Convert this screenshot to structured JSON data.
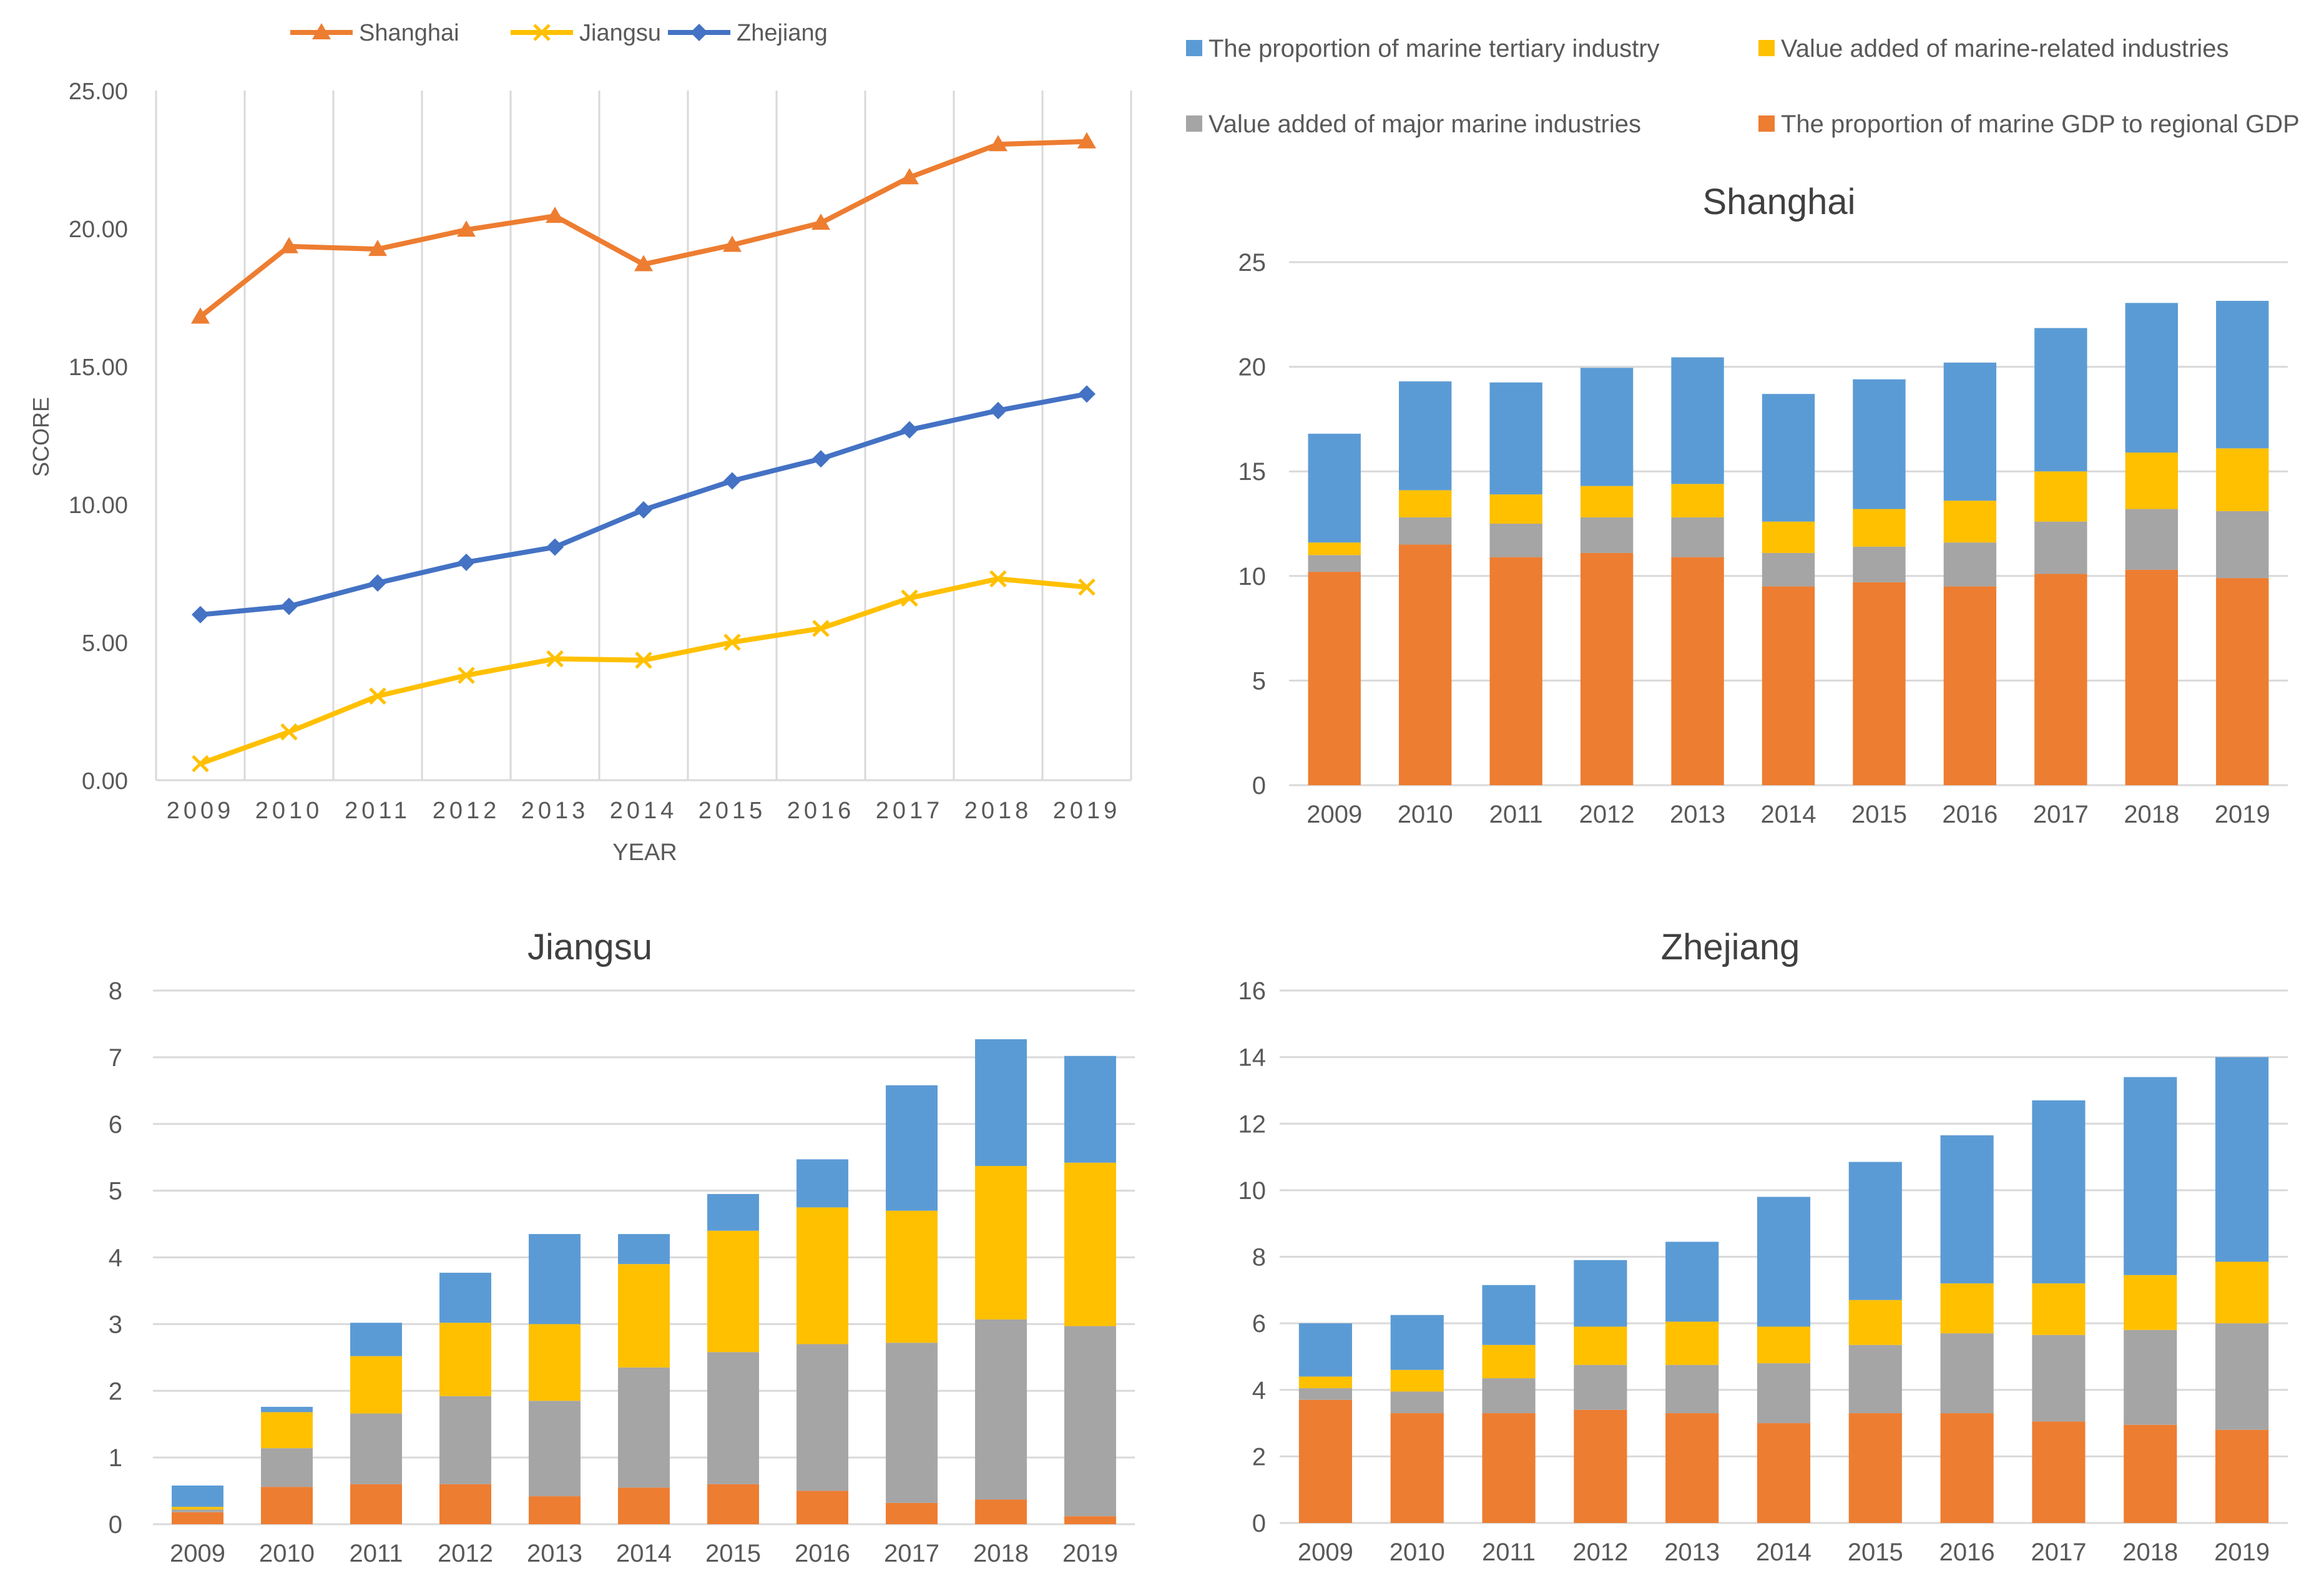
{
  "colors": {
    "shanghai_line": "#ED7D31",
    "jiangsu_line": "#FFC000",
    "zhejiang_line": "#4472C4",
    "gdp_proportion": "#ED7D31",
    "major_industries": "#A5A5A5",
    "related_industries": "#FFC000",
    "tertiary_industry": "#5B9BD5",
    "grid": "#D9D9D9",
    "axis_text": "#595959",
    "title_text": "#404040"
  },
  "chart_data": [
    {
      "type": "line",
      "title": "",
      "xlabel": "YEAR",
      "ylabel": "SCORE",
      "ylim": [
        0,
        25
      ],
      "yticks": [
        "0.00",
        "5.00",
        "10.00",
        "15.00",
        "20.00",
        "25.00"
      ],
      "categories": [
        "2009",
        "2010",
        "2011",
        "2012",
        "2013",
        "2014",
        "2015",
        "2016",
        "2017",
        "2018",
        "2019"
      ],
      "legend": [
        "Shanghai",
        "Jiangsu",
        "Zhejiang"
      ],
      "series": [
        {
          "name": "Shanghai",
          "marker": "triangle",
          "values": [
            16.8,
            19.35,
            19.25,
            19.95,
            20.45,
            18.7,
            19.4,
            20.2,
            21.85,
            23.05,
            23.15
          ]
        },
        {
          "name": "Jiangsu",
          "marker": "x",
          "values": [
            0.6,
            1.75,
            3.05,
            3.8,
            4.4,
            4.35,
            5.0,
            5.5,
            6.6,
            7.3,
            7.0
          ]
        },
        {
          "name": "Zhejiang",
          "marker": "diamond",
          "values": [
            6.0,
            6.3,
            7.15,
            7.9,
            8.45,
            9.8,
            10.85,
            11.65,
            12.7,
            13.4,
            14.0
          ]
        }
      ]
    },
    {
      "type": "bar",
      "stacked": true,
      "title": "Shanghai",
      "ylim": [
        0,
        25
      ],
      "yticks": [
        "0",
        "5",
        "10",
        "15",
        "20",
        "25"
      ],
      "categories": [
        "2009",
        "2010",
        "2011",
        "2012",
        "2013",
        "2014",
        "2015",
        "2016",
        "2017",
        "2018",
        "2019"
      ],
      "legend": [
        "The proportion of marine tertiary industry",
        "Value added of marine-related industries",
        "Value added of major marine industries",
        "The proportion of marine GDP to regional GDP"
      ],
      "series": [
        {
          "name": "The proportion of marine GDP to regional GDP",
          "values": [
            10.2,
            11.5,
            10.9,
            11.1,
            10.9,
            9.5,
            9.7,
            9.5,
            10.1,
            10.3,
            9.9
          ]
        },
        {
          "name": "Value added of major marine industries",
          "values": [
            0.8,
            1.3,
            1.6,
            1.7,
            1.9,
            1.6,
            1.7,
            2.1,
            2.5,
            2.9,
            3.2
          ]
        },
        {
          "name": "Value added of marine-related industries",
          "values": [
            0.6,
            1.3,
            1.4,
            1.5,
            1.6,
            1.5,
            1.8,
            2.0,
            2.4,
            2.7,
            3.0
          ]
        },
        {
          "name": "The proportion of marine tertiary industry",
          "values": [
            5.2,
            5.2,
            5.35,
            5.65,
            6.05,
            6.1,
            6.2,
            6.6,
            6.85,
            7.15,
            7.05
          ]
        }
      ]
    },
    {
      "type": "bar",
      "stacked": true,
      "title": "Jiangsu",
      "ylim": [
        0,
        8
      ],
      "yticks": [
        "0",
        "1",
        "2",
        "3",
        "4",
        "5",
        "6",
        "7",
        "8"
      ],
      "categories": [
        "2009",
        "2010",
        "2011",
        "2012",
        "2013",
        "2014",
        "2015",
        "2016",
        "2017",
        "2018",
        "2019"
      ],
      "series": [
        {
          "name": "The proportion of marine GDP to regional GDP",
          "values": [
            0.18,
            0.56,
            0.6,
            0.6,
            0.42,
            0.55,
            0.6,
            0.5,
            0.32,
            0.37,
            0.12
          ]
        },
        {
          "name": "Value added of major marine industries",
          "values": [
            0.04,
            0.58,
            1.06,
            1.32,
            1.43,
            1.8,
            1.98,
            2.2,
            2.4,
            2.7,
            2.85
          ]
        },
        {
          "name": "Value added of marine-related industries",
          "values": [
            0.04,
            0.54,
            0.86,
            1.1,
            1.15,
            1.55,
            1.82,
            2.05,
            1.98,
            2.3,
            2.45
          ]
        },
        {
          "name": "The proportion of marine tertiary industry",
          "values": [
            0.32,
            0.08,
            0.5,
            0.75,
            1.35,
            0.45,
            0.55,
            0.72,
            1.88,
            1.9,
            1.6
          ]
        }
      ]
    },
    {
      "type": "bar",
      "stacked": true,
      "title": "Zhejiang",
      "ylim": [
        0,
        16
      ],
      "yticks": [
        "0",
        "2",
        "4",
        "6",
        "8",
        "10",
        "12",
        "14",
        "16"
      ],
      "categories": [
        "2009",
        "2010",
        "2011",
        "2012",
        "2013",
        "2014",
        "2015",
        "2016",
        "2017",
        "2018",
        "2019"
      ],
      "series": [
        {
          "name": "The proportion of marine GDP to regional GDP",
          "values": [
            3.7,
            3.3,
            3.3,
            3.4,
            3.3,
            3.0,
            3.3,
            3.3,
            3.05,
            2.95,
            2.8
          ]
        },
        {
          "name": "Value added of major marine industries",
          "values": [
            0.35,
            0.65,
            1.05,
            1.35,
            1.45,
            1.8,
            2.05,
            2.4,
            2.6,
            2.85,
            3.2
          ]
        },
        {
          "name": "Value added of marine-related industries",
          "values": [
            0.35,
            0.65,
            1.0,
            1.15,
            1.3,
            1.1,
            1.35,
            1.5,
            1.55,
            1.65,
            1.85
          ]
        },
        {
          "name": "The proportion of marine tertiary industry",
          "values": [
            1.6,
            1.65,
            1.8,
            2.0,
            2.4,
            3.9,
            4.15,
            4.45,
            5.5,
            5.95,
            6.15
          ]
        }
      ]
    }
  ]
}
